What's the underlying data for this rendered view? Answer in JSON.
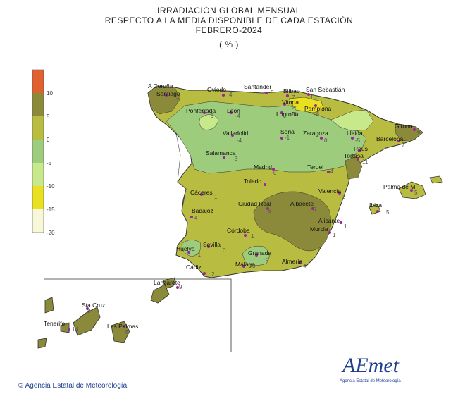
{
  "title": {
    "line1": "IRRADIACIÓN  GLOBAL MENSUAL",
    "line2": "RESPECTO  A LA MEDIA DISPONIBLE DE CADA ESTACIÓN",
    "line3": "FEBRERO-2024",
    "line4": "( % )"
  },
  "legend": {
    "ticks": [
      "10",
      "5",
      "0",
      "-5",
      "-10",
      "-15",
      "-20"
    ],
    "colors": [
      "#e06030",
      "#8a8a3a",
      "#b8bc40",
      "#9ccc7c",
      "#c8e88c",
      "#e8e020",
      "#f8f8d8"
    ]
  },
  "stations": [
    {
      "name": "A Coruña",
      "value": ""
    },
    {
      "name": "Santiago",
      "value": "7"
    },
    {
      "name": "Oviedo",
      "value": "4"
    },
    {
      "name": "Santander",
      "value": "5"
    },
    {
      "name": "Bilbao",
      "value": "7"
    },
    {
      "name": "San Sebastián",
      "value": "10"
    },
    {
      "name": "Vitoria",
      "value": "-7"
    },
    {
      "name": "Pamplona",
      "value": "-8"
    },
    {
      "name": "Ponferrada",
      "value": "-6"
    },
    {
      "name": "León",
      "value": "-4"
    },
    {
      "name": "Logroño",
      "value": "-8"
    },
    {
      "name": "Valladolid",
      "value": "-4"
    },
    {
      "name": "Soria",
      "value": "-1"
    },
    {
      "name": "Zaragoza",
      "value": "0"
    },
    {
      "name": "Lleida",
      "value": "-5"
    },
    {
      "name": "Girona",
      "value": "6"
    },
    {
      "name": "Barcelona",
      "value": "7"
    },
    {
      "name": "Reus",
      "value": ""
    },
    {
      "name": "Tortosa",
      "value": "11"
    },
    {
      "name": "Salamanca",
      "value": "-3"
    },
    {
      "name": "Madrid",
      "value": "0"
    },
    {
      "name": "Teruel",
      "value": "-4"
    },
    {
      "name": "Toledo",
      "value": ""
    },
    {
      "name": "Valencia",
      "value": "3"
    },
    {
      "name": "Palma de M.",
      "value": "5"
    },
    {
      "name": "Ibiza",
      "value": "5"
    },
    {
      "name": "Cáceres",
      "value": "1"
    },
    {
      "name": "Ciudad Real",
      "value": "6"
    },
    {
      "name": "Albacete",
      "value": "5"
    },
    {
      "name": "Badajoz",
      "value": "4"
    },
    {
      "name": "Alicante",
      "value": "1"
    },
    {
      "name": "Murcia",
      "value": "1"
    },
    {
      "name": "Córdoba",
      "value": "1"
    },
    {
      "name": "Sevilla",
      "value": "0"
    },
    {
      "name": "Huelva",
      "value": "-1"
    },
    {
      "name": "Granada",
      "value": "-5"
    },
    {
      "name": "Málaga",
      "value": "3"
    },
    {
      "name": "Almería",
      "value": "4"
    },
    {
      "name": "Cádiz",
      "value": "2"
    },
    {
      "name": "Lanzarote",
      "value": "9"
    },
    {
      "name": "Sta Cruz",
      "value": "8"
    },
    {
      "name": "Tenerife",
      "value": "14"
    },
    {
      "name": "Las Palmas",
      "value": "5"
    }
  ],
  "credit": "Agencia Estatal de Meteorología",
  "logo": {
    "text": "AEmet",
    "subtitle": "Agencia Estatal de Meteorología"
  }
}
